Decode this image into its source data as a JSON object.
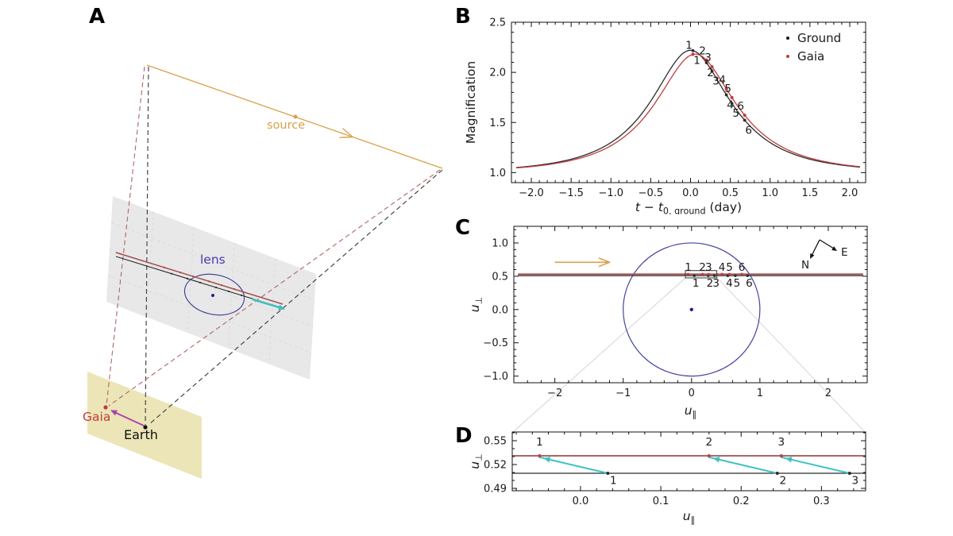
{
  "figure_labels": {
    "a": "A",
    "b": "B",
    "c": "C",
    "d": "D"
  },
  "panelA": {
    "labels": {
      "source": "source",
      "lens": "lens",
      "gaia": "Gaia",
      "earth": "Earth"
    },
    "colors": {
      "source_orange": "#d9a04c",
      "lens_blue": "#4a3ab0",
      "gaia_red": "#c13b3e",
      "earth_black": "#111111",
      "magenta_arrow": "#a844a8",
      "dashed_red": "#b26a6a",
      "dashed_black": "#3f3f3f",
      "lens_plane": "#e8e8e8",
      "observer_plane": "#ece5b8",
      "cyan_arrow": "#3fbfbf",
      "ellipse_blue": "#44449e",
      "lens_dot": "#22228a"
    }
  },
  "chart_data": [
    {
      "id": "B",
      "type": "line",
      "ylabel_runs": [
        {
          "t": "Magnification"
        }
      ],
      "xlabel_runs": [
        {
          "t": "t",
          "i": 1
        },
        {
          "t": " − "
        },
        {
          "t": "t",
          "i": 1
        },
        {
          "t": "0, ground",
          "sub": 1
        },
        {
          "t": " (day)"
        }
      ],
      "xlim": [
        -2.25,
        2.2
      ],
      "ylim": [
        0.9,
        2.5
      ],
      "xticks": {
        "values": [
          -2,
          -1.5,
          -1,
          -0.5,
          0,
          0.5,
          1,
          1.5,
          2
        ],
        "labels": [
          "−2.0",
          "−1.5",
          "−1.0",
          "−0.5",
          "0.0",
          "0.5",
          "1.0",
          "1.5",
          "2.0"
        ],
        "minor_step": 0.1
      },
      "yticks": {
        "values": [
          1.0,
          1.5,
          2.0,
          2.5
        ],
        "labels": [
          "1.0",
          "1.5",
          "2.0",
          "2.5"
        ],
        "minor_step": 0.1
      },
      "legend": [
        {
          "label": "Ground",
          "color": "#1a1a1a"
        },
        {
          "label": "Gaia",
          "color": "#c13b3e"
        }
      ],
      "series": [
        {
          "name": "Ground",
          "model": "paczynski",
          "u0": 0.49,
          "t0": 0.0,
          "tE": 1.06,
          "color": "#2b2b2b"
        },
        {
          "name": "Gaia",
          "model": "paczynski",
          "u0": 0.5,
          "t0": 0.06,
          "tE": 1.06,
          "color": "#c13b3e"
        }
      ],
      "epochs": {
        "times": [
          0.03,
          0.2,
          0.27,
          0.45,
          0.52,
          0.68
        ],
        "labels": [
          "1",
          "2",
          "3",
          "4",
          "5",
          "6"
        ]
      },
      "peak_magnification": 2.22,
      "legend_position": "upper right",
      "grid": false
    },
    {
      "id": "C",
      "type": "trajectory",
      "xlabel_runs": [
        {
          "t": "u",
          "i": 1
        },
        {
          "t": "∥",
          "sub": 1
        }
      ],
      "ylabel_runs": [
        {
          "t": "u",
          "i": 1
        },
        {
          "t": "⊥",
          "sub": 1
        }
      ],
      "xlim": [
        -2.6,
        2.57
      ],
      "ylim": [
        -1.1,
        1.25
      ],
      "xticks": {
        "values": [
          -2,
          -1,
          0,
          1,
          2
        ],
        "labels": [
          "−2",
          "−1",
          "0",
          "1",
          "2"
        ],
        "minor_step": 0.2
      },
      "yticks": {
        "values": [
          -1.0,
          -0.5,
          0.0,
          0.5,
          1.0
        ],
        "labels": [
          "−1.0",
          "−0.5",
          "0.0",
          "0.5",
          "1.0"
        ],
        "minor_step": 0.1
      },
      "einstein_ring": {
        "cx": 0,
        "cy": 0,
        "r": 1,
        "color": "#44449e"
      },
      "lens_dot": {
        "x": 0,
        "y": 0,
        "color": "#22228a"
      },
      "trajectories": [
        {
          "name": "Ground",
          "u_perp": 0.508,
          "color": "#2b2b2b",
          "width": 1.2
        },
        {
          "name": "Gaia",
          "u_perp": 0.53,
          "color": "#a34f4f",
          "width": 2.0
        }
      ],
      "epochs": {
        "labels": [
          "1",
          "2",
          "3",
          "4",
          "5",
          "6"
        ],
        "ground_x": [
          0.04,
          0.245,
          0.335,
          0.53,
          0.64,
          0.82
        ],
        "gaia_x": [
          -0.05,
          0.16,
          0.25,
          0.445,
          0.555,
          0.735
        ],
        "gaia_label_y": 0.58,
        "ground_label_y": 0.345
      },
      "motion_arrow": {
        "x1": -2.0,
        "x2": -1.2,
        "y": 0.71,
        "color": "#d9a04c"
      },
      "zoom_box": {
        "x0": -0.09,
        "x1": 0.37,
        "y0": 0.475,
        "y1": 0.585
      },
      "compass": {
        "n_label": "N",
        "e_label": "E"
      }
    },
    {
      "id": "D",
      "type": "zoom-inset",
      "xlabel_runs": [
        {
          "t": "u",
          "i": 1
        },
        {
          "t": "∥",
          "sub": 1
        }
      ],
      "ylabel_runs": [
        {
          "t": "u",
          "i": 1
        },
        {
          "t": "⊥",
          "sub": 1
        }
      ],
      "xlim": [
        -0.085,
        0.355
      ],
      "ylim": [
        0.487,
        0.561
      ],
      "xticks": {
        "values": [
          0.0,
          0.1,
          0.2,
          0.3
        ],
        "labels": [
          "0.0",
          "0.1",
          "0.2",
          "0.3"
        ],
        "minor_step": 0.02
      },
      "yticks": {
        "values": [
          0.49,
          0.52,
          0.55
        ],
        "labels": [
          "0.49",
          "0.52",
          "0.55"
        ],
        "minor_step": 0.01
      },
      "lines": [
        {
          "name": "Ground",
          "u_perp": 0.509,
          "color": "#2b2b2b",
          "width": 1.2
        },
        {
          "name": "Gaia",
          "u_perp": 0.531,
          "color": "#a34f4f",
          "width": 1.8
        }
      ],
      "epochs": {
        "labels": [
          "1",
          "2",
          "3"
        ],
        "ground": [
          0.034,
          0.245,
          0.335
        ],
        "gaia": [
          -0.051,
          0.16,
          0.25
        ]
      },
      "arrow_color": "#3fc3c3"
    }
  ]
}
